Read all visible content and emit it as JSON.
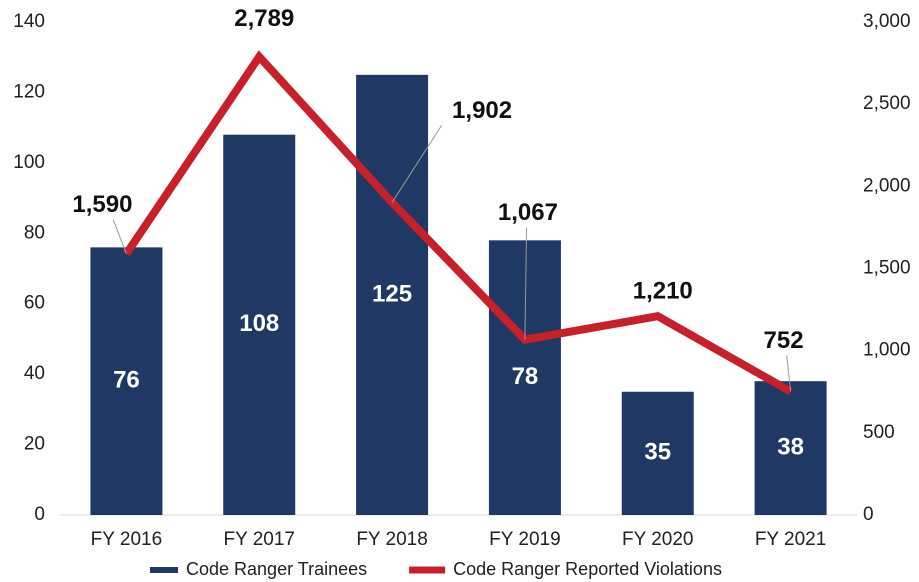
{
  "chart_data": {
    "type": "bar",
    "categories": [
      "FY 2016",
      "FY 2017",
      "FY 2018",
      "FY 2019",
      "FY 2020",
      "FY 2021"
    ],
    "series": [
      {
        "name": "Code Ranger Trainees",
        "type": "bar",
        "color": "#1f3864",
        "values": [
          76,
          108,
          125,
          78,
          35,
          38
        ]
      },
      {
        "name": "Code Ranger Reported Violations",
        "type": "line",
        "axis": "y2",
        "color": "#c8202a",
        "values": [
          1590,
          2789,
          1902,
          1067,
          1210,
          752
        ],
        "value_labels": [
          "1,590",
          "2,789",
          "1,902",
          "1,067",
          "1,210",
          "752"
        ]
      }
    ],
    "ylim": [
      0,
      140
    ],
    "yticks": [
      0,
      20,
      40,
      60,
      80,
      100,
      120,
      140
    ],
    "y2lim": [
      0,
      3000
    ],
    "y2ticks": [
      0,
      500,
      {
        "value": 1000,
        "label": "1,000"
      },
      {
        "value": 1500,
        "label": "1,500"
      },
      {
        "value": 2000,
        "label": "2,000"
      },
      {
        "value": 2500,
        "label": "2,500"
      },
      {
        "value": 3000,
        "label": "3,000"
      }
    ],
    "legend": "bottom"
  }
}
